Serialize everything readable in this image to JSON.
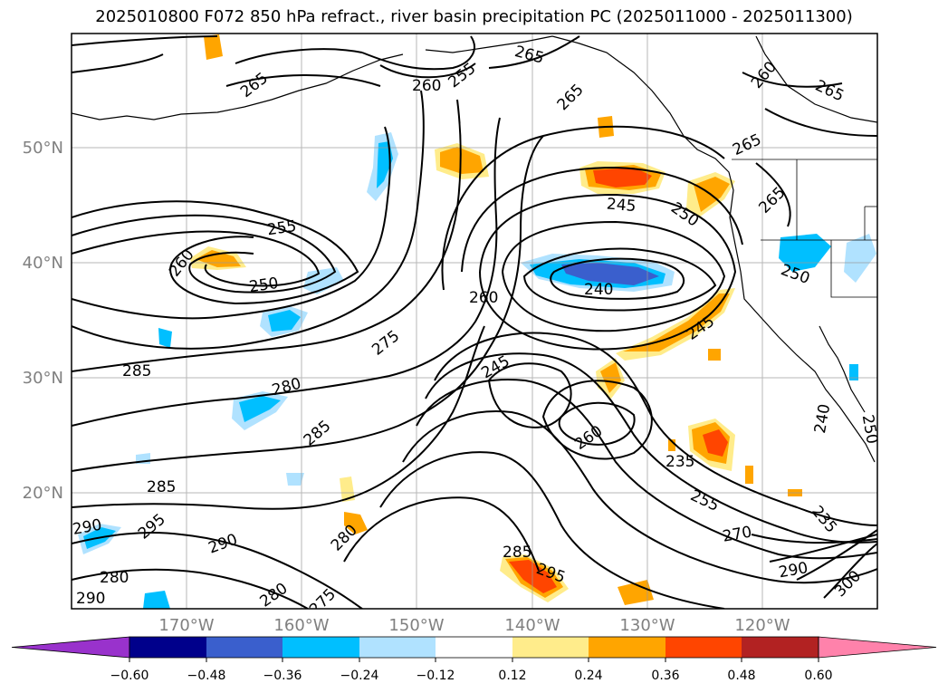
{
  "title": "2025010800 F072 850 hPa refract., river basin precipitation PC (2025011000 - 2025011300)",
  "latitude_labels": [
    "50°N",
    "40°N",
    "30°N",
    "20°N"
  ],
  "longitude_labels": [
    "170°W",
    "160°W",
    "150°W",
    "140°W",
    "130°W",
    "120°W"
  ],
  "colorbar": {
    "tick_labels": [
      "−0.60",
      "−0.48",
      "−0.36",
      "−0.24",
      "−0.12",
      "0.12",
      "0.24",
      "0.36",
      "0.48",
      "0.60"
    ],
    "colors": [
      "#9932cc",
      "#00008b",
      "#3a5fcd",
      "#00bfff",
      "#b0e2ff",
      "#ffffff",
      "#ffec8b",
      "#ffa500",
      "#ff4500",
      "#b22222",
      "#ff82ab"
    ]
  },
  "contour_labels": [
    "265",
    "260",
    "255",
    "265",
    "265",
    "260",
    "265",
    "265",
    "255",
    "260",
    "250",
    "245",
    "250",
    "265",
    "240",
    "260",
    "250",
    "275",
    "245",
    "285",
    "245",
    "280",
    "285",
    "260",
    "235",
    "240",
    "250",
    "285",
    "255",
    "295",
    "290",
    "270",
    "235",
    "280",
    "290",
    "285",
    "295",
    "300",
    "290",
    "280",
    "275",
    "280",
    "290"
  ],
  "fill_colors": {
    "light_blue": "#b0e2ff",
    "blue": "#00bfff",
    "dark_blue": "#3a5fcd",
    "yellow": "#ffec8b",
    "orange": "#ffa500",
    "red_orange": "#ff4500"
  }
}
